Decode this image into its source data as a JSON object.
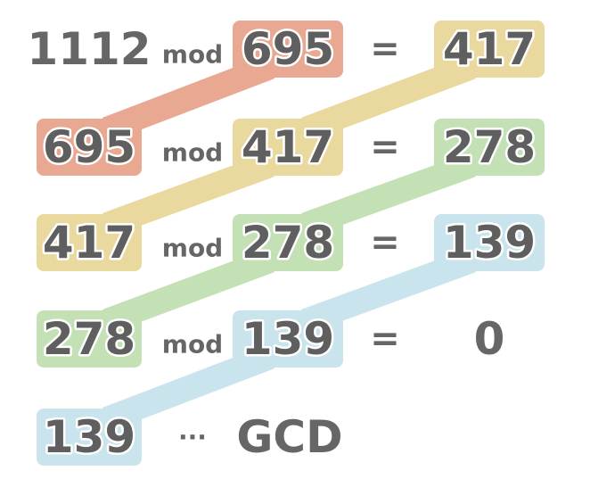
{
  "colors": {
    "red": "#e8a891",
    "yellow": "#ead99e",
    "green": "#c3e1b5",
    "blue": "#c9e4ec",
    "text": "#5f5f5f",
    "zero": "#c0392b"
  },
  "rows": [
    {
      "dividend": "1112",
      "dividend_color": null,
      "op": "mod",
      "divisor": "695",
      "divisor_color": "red",
      "eq": "=",
      "result": "417",
      "result_color": "yellow"
    },
    {
      "dividend": "695",
      "dividend_color": "red",
      "op": "mod",
      "divisor": "417",
      "divisor_color": "yellow",
      "eq": "=",
      "result": "278",
      "result_color": "green"
    },
    {
      "dividend": "417",
      "dividend_color": "yellow",
      "op": "mod",
      "divisor": "278",
      "divisor_color": "green",
      "eq": "=",
      "result": "139",
      "result_color": "blue"
    },
    {
      "dividend": "278",
      "dividend_color": "green",
      "op": "mod",
      "divisor": "139",
      "divisor_color": "blue",
      "eq": "=",
      "result": "0",
      "result_color": null
    }
  ],
  "final": {
    "value": "139",
    "color": "blue",
    "ellipsis": "···",
    "label": "GCD"
  }
}
